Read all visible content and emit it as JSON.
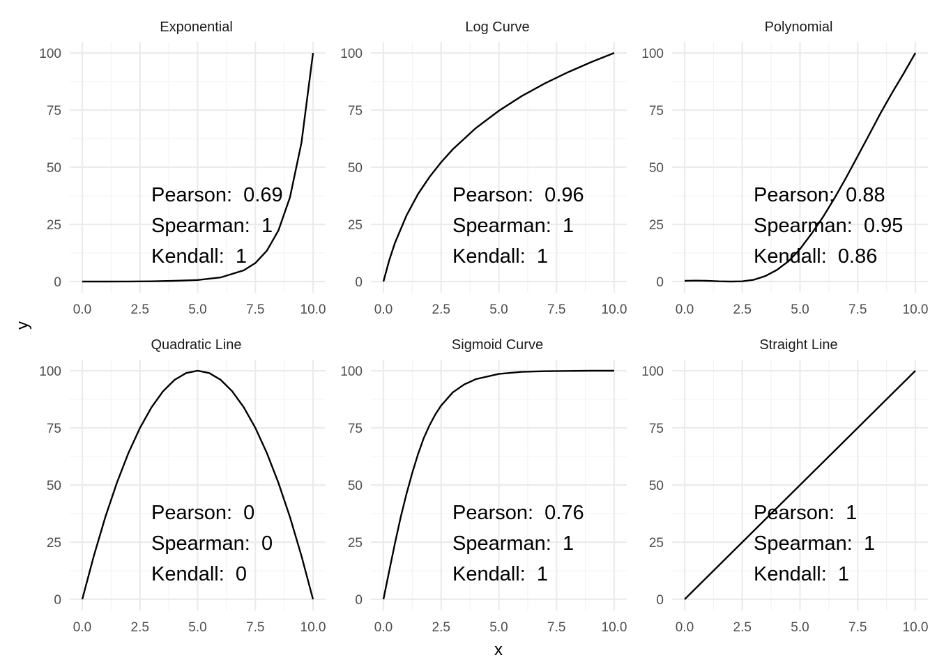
{
  "chart_data": {
    "type": "line",
    "xlabel": "x",
    "ylabel": "y",
    "xlim": [
      0,
      10
    ],
    "ylim": [
      0,
      100
    ],
    "x_ticks": [
      0,
      2.5,
      5,
      7.5,
      10
    ],
    "x_tick_labels": [
      "0.0",
      "2.5",
      "5.0",
      "7.5",
      "10.0"
    ],
    "y_ticks": [
      0,
      25,
      50,
      75,
      100
    ],
    "y_tick_labels": [
      "0",
      "25",
      "50",
      "75",
      "100"
    ],
    "grid": true,
    "line_color": "#000000",
    "panels": [
      {
        "title": "Exponential",
        "x": [
          0,
          1,
          2,
          3,
          4,
          5,
          6,
          7,
          7.5,
          8,
          8.5,
          9,
          9.5,
          10
        ],
        "y": [
          0,
          0.01,
          0.03,
          0.1,
          0.3,
          0.67,
          1.8,
          4.9,
          8.1,
          13.5,
          22.3,
          36.8,
          60.7,
          100
        ],
        "annotations": [
          {
            "method": "Pearson",
            "value": "0.69",
            "text": "Pearson:  0.69"
          },
          {
            "method": "Spearman",
            "value": "1",
            "text": "Spearman:  1"
          },
          {
            "method": "Kendall",
            "value": "1",
            "text": "Kendall:  1"
          }
        ]
      },
      {
        "title": "Log Curve",
        "x": [
          0,
          0.25,
          0.5,
          1,
          1.5,
          2,
          2.5,
          3,
          4,
          5,
          6,
          7,
          8,
          9,
          10
        ],
        "y": [
          0,
          9.3,
          16.9,
          28.9,
          38.3,
          45.8,
          52.2,
          57.8,
          67.1,
          74.7,
          81.2,
          86.7,
          91.6,
          96.0,
          100
        ],
        "annotations": [
          {
            "method": "Pearson",
            "value": "0.96",
            "text": "Pearson:  0.96"
          },
          {
            "method": "Spearman",
            "value": "1",
            "text": "Spearman:  1"
          },
          {
            "method": "Kendall",
            "value": "1",
            "text": "Kendall:  1"
          }
        ]
      },
      {
        "title": "Polynomial",
        "x": [
          0,
          0.5,
          1,
          1.5,
          2,
          2.5,
          3,
          3.5,
          4,
          4.5,
          5,
          5.5,
          6,
          6.5,
          7,
          7.5,
          8,
          8.5,
          9,
          9.5,
          10
        ],
        "y": [
          0.3,
          0.4,
          0.3,
          0.1,
          0,
          0.1,
          0.8,
          2.4,
          5.1,
          8.9,
          14.2,
          20.9,
          28.3,
          36.6,
          45.5,
          54.9,
          64.3,
          73.8,
          82.7,
          91.2,
          100
        ],
        "annotations": [
          {
            "method": "Pearson",
            "value": "0.88",
            "text": "Pearson:  0.88"
          },
          {
            "method": "Spearman",
            "value": "0.95",
            "text": "Spearman:  0.95"
          },
          {
            "method": "Kendall",
            "value": "0.86",
            "text": "Kendall:  0.86"
          }
        ]
      },
      {
        "title": "Quadratic Line",
        "x": [
          0,
          0.5,
          1,
          1.5,
          2,
          2.5,
          3,
          3.5,
          4,
          4.5,
          5,
          5.5,
          6,
          6.5,
          7,
          7.5,
          8,
          8.5,
          9,
          9.5,
          10
        ],
        "y": [
          0,
          19,
          36,
          51,
          64,
          75,
          84,
          91,
          96,
          99,
          100,
          99,
          96,
          91,
          84,
          75,
          64,
          51,
          36,
          19,
          0
        ],
        "annotations": [
          {
            "method": "Pearson",
            "value": "0",
            "text": "Pearson:  0"
          },
          {
            "method": "Spearman",
            "value": "0",
            "text": "Spearman:  0"
          },
          {
            "method": "Kendall",
            "value": "0",
            "text": "Kendall:  0"
          }
        ]
      },
      {
        "title": "Sigmoid Curve",
        "x": [
          0,
          0.25,
          0.5,
          0.75,
          1,
          1.25,
          1.5,
          1.75,
          2,
          2.25,
          2.5,
          3,
          3.5,
          4,
          5,
          6,
          7,
          8,
          9,
          10
        ],
        "y": [
          0,
          12.4,
          24.5,
          36.0,
          46.2,
          55.4,
          63.5,
          70.6,
          76.2,
          80.9,
          84.8,
          90.5,
          94.0,
          96.3,
          98.6,
          99.5,
          99.8,
          99.9,
          100,
          100
        ],
        "annotations": [
          {
            "method": "Pearson",
            "value": "0.76",
            "text": "Pearson:  0.76"
          },
          {
            "method": "Spearman",
            "value": "1",
            "text": "Spearman:  1"
          },
          {
            "method": "Kendall",
            "value": "1",
            "text": "Kendall:  1"
          }
        ]
      },
      {
        "title": "Straight Line",
        "x": [
          0,
          10
        ],
        "y": [
          0,
          100
        ],
        "annotations": [
          {
            "method": "Pearson",
            "value": "1",
            "text": "Pearson:  1"
          },
          {
            "method": "Spearman",
            "value": "1",
            "text": "Spearman:  1"
          },
          {
            "method": "Kendall",
            "value": "1",
            "text": "Kendall:  1"
          }
        ]
      }
    ]
  }
}
